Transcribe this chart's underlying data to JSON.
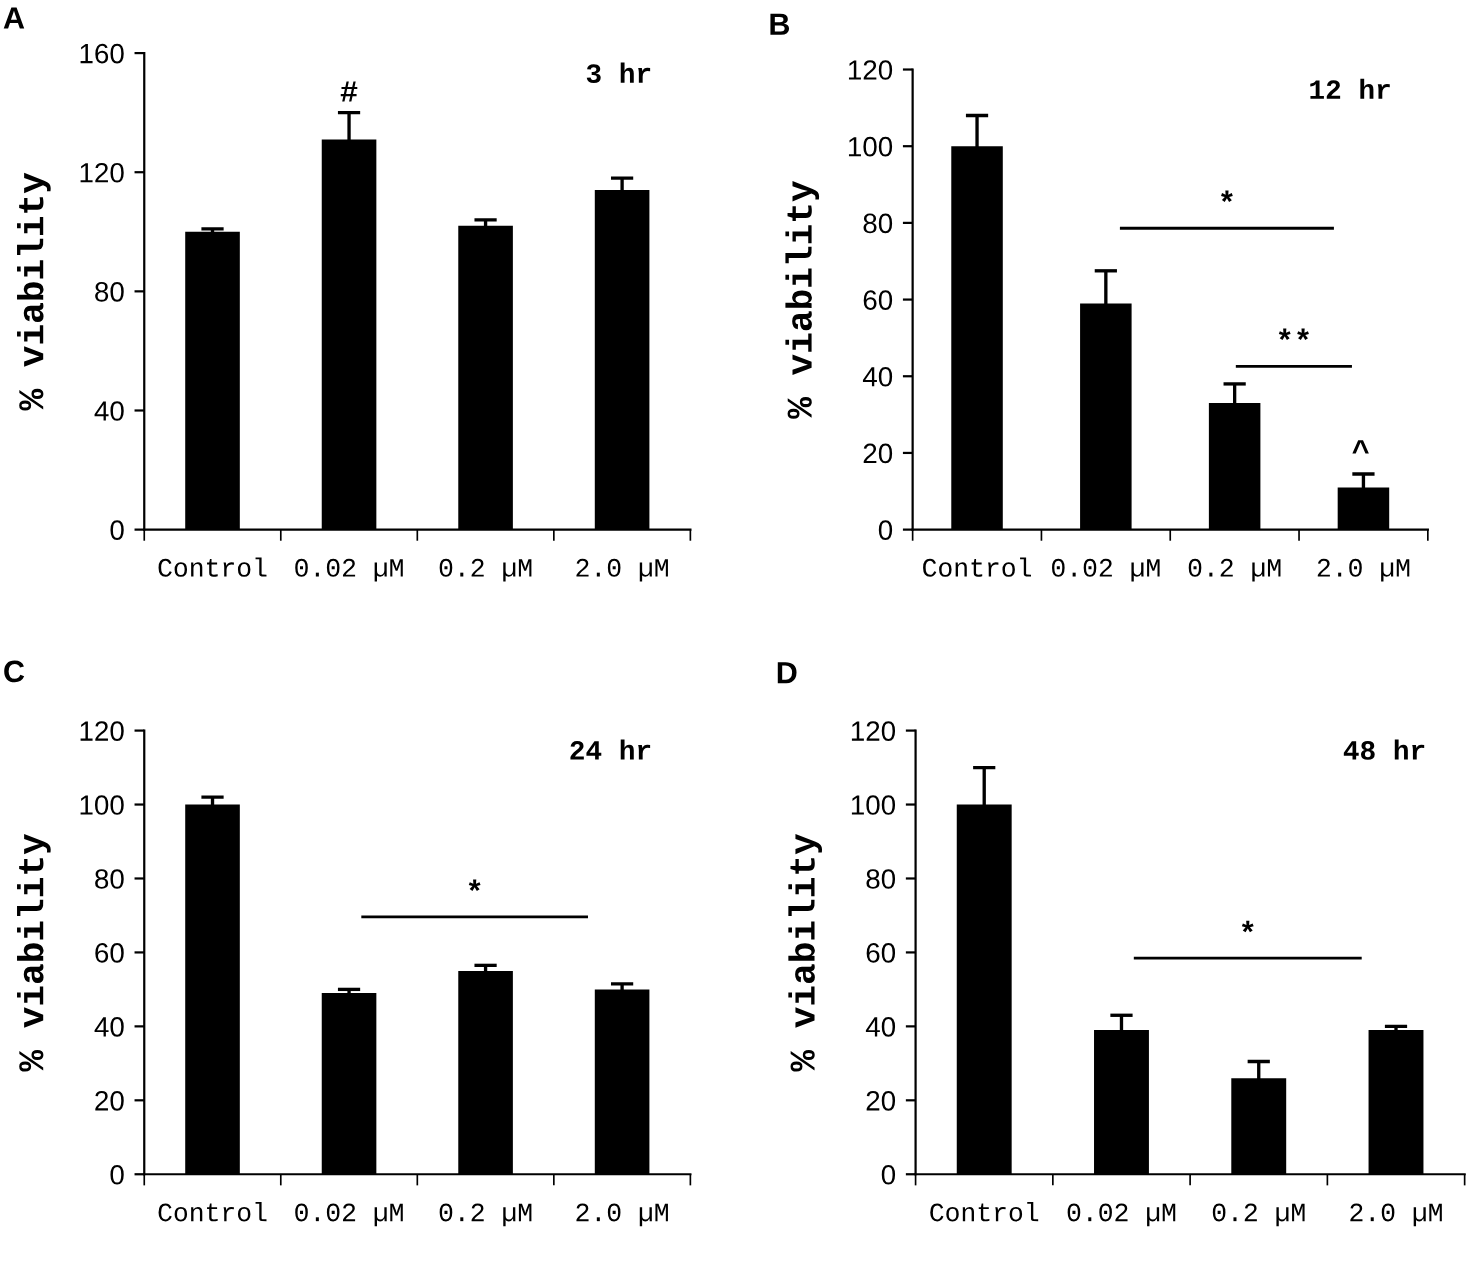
{
  "chart_data": [
    {
      "type": "bar",
      "title": "3 hr",
      "ylabel": "% viability",
      "categories": [
        "Control",
        "0.02 µM",
        "0.2 µM",
        "2.0 µM"
      ],
      "color": "#000000",
      "values": [
        100,
        131,
        102,
        114
      ],
      "errors": [
        1,
        9,
        2,
        4
      ],
      "ylim": [
        0,
        160
      ],
      "yticks": [
        0,
        40,
        80,
        120,
        160
      ],
      "annotations": [
        "A",
        "#"
      ]
    },
    {
      "type": "bar",
      "title": "12 hr",
      "ylabel": "% viability",
      "categories": [
        "Control",
        "0.02 µM",
        "0.2 µM",
        "2.0 µM"
      ],
      "color": "#000000",
      "values": [
        100,
        59,
        33,
        11
      ],
      "errors": [
        8,
        8.5,
        5,
        3.5
      ],
      "ylim": [
        0,
        120
      ],
      "yticks": [
        0,
        20,
        40,
        60,
        80,
        100,
        120
      ],
      "annotations": [
        "B",
        "*",
        "**",
        "^"
      ]
    },
    {
      "type": "bar",
      "title": "24 hr",
      "ylabel": "% viability",
      "categories": [
        "Control",
        "0.02 µM",
        "0.2 µM",
        "2.0 µM"
      ],
      "color": "#000000",
      "values": [
        100,
        49,
        55,
        50
      ],
      "errors": [
        2,
        1,
        1.5,
        1.5
      ],
      "ylim": [
        0,
        120
      ],
      "yticks": [
        0,
        20,
        40,
        60,
        80,
        100,
        120
      ],
      "annotations": [
        "C",
        "*"
      ]
    },
    {
      "type": "bar",
      "title": "48 hr",
      "ylabel": "% viability",
      "categories": [
        "Control",
        "0.02 µM",
        "0.2 µM",
        "2.0 µM"
      ],
      "color": "#000000",
      "values": [
        100,
        39,
        26,
        39
      ],
      "errors": [
        10,
        4,
        4.5,
        1
      ],
      "ylim": [
        0,
        120
      ],
      "yticks": [
        0,
        20,
        40,
        60,
        80,
        100,
        120
      ],
      "annotations": [
        "D",
        "*"
      ]
    }
  ]
}
